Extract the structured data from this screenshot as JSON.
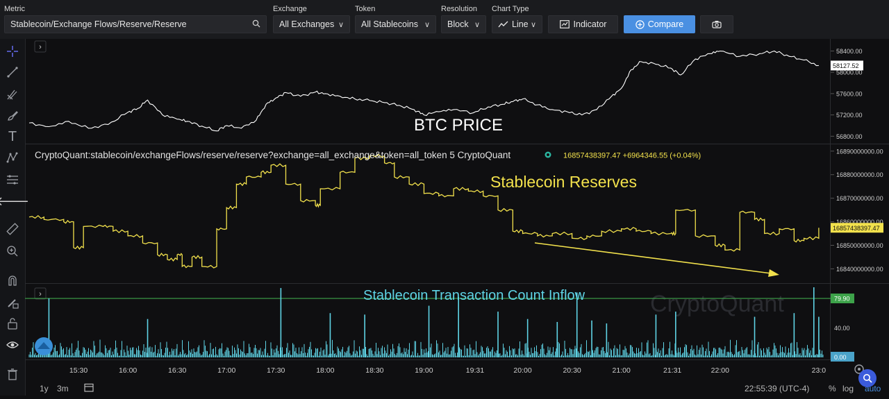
{
  "toolbar": {
    "metric_label": "Metric",
    "metric_value": "Stablecoin/Exchange Flows/Reserve/Reserve",
    "exchange_label": "Exchange",
    "exchange_value": "All Exchanges",
    "token_label": "Token",
    "token_value": "All Stablecoins",
    "resolution_label": "Resolution",
    "resolution_value": "Block",
    "chart_type_label": "Chart Type",
    "chart_type_value": "Line",
    "indicator_label": "Indicator",
    "compare_label": "Compare"
  },
  "bottom_bar": {
    "range_1y": "1y",
    "range_3m": "3m",
    "clock": "22:55:39 (UTC-4)",
    "percent": "%",
    "log": "log",
    "auto": "auto"
  },
  "colors": {
    "btc": "#ffffff",
    "reserve": "#f2e14c",
    "inflow": "#5fd4e6",
    "threshold": "#3da34a",
    "accent": "#4a90e2"
  },
  "chart_data": [
    {
      "type": "line",
      "name": "btc_price",
      "title": "BTC PRICE",
      "x_range": [
        15.0,
        23.05
      ],
      "ylim": [
        56700,
        58550
      ],
      "ticks": [
        58400.0,
        58000.0,
        57600.0,
        57200.0,
        56800.0
      ],
      "tick_labels": [
        "58400.00",
        "58000.00",
        "57600.00",
        "57200.00",
        "56800.00"
      ],
      "last_value_label": "58127.52",
      "x": [
        15.0,
        15.2,
        15.4,
        15.6,
        15.8,
        16.0,
        16.1,
        16.2,
        16.35,
        16.5,
        16.6,
        16.75,
        16.9,
        17.0,
        17.15,
        17.3,
        17.4,
        17.5,
        17.6,
        17.75,
        17.9,
        18.0,
        18.15,
        18.3,
        18.45,
        18.6,
        18.75,
        18.9,
        19.0,
        19.15,
        19.3,
        19.5,
        19.65,
        19.8,
        19.9,
        20.0,
        20.15,
        20.3,
        20.45,
        20.6,
        20.75,
        20.9,
        21.0,
        21.1,
        21.2,
        21.35,
        21.5,
        21.6,
        21.75,
        21.9,
        22.0,
        22.2,
        22.4,
        22.55,
        22.7,
        22.85,
        23.0
      ],
      "y": [
        57050,
        56980,
        57080,
        56950,
        57020,
        57250,
        57320,
        57480,
        57200,
        57120,
        57080,
        56990,
        56900,
        57000,
        56950,
        57100,
        57400,
        57520,
        57620,
        57550,
        57630,
        57600,
        57550,
        57500,
        57470,
        57430,
        57380,
        57300,
        57200,
        57260,
        57300,
        57240,
        57350,
        57400,
        57450,
        57500,
        57390,
        57300,
        57260,
        57200,
        57300,
        57550,
        57700,
        58050,
        58200,
        58150,
        58080,
        57950,
        58250,
        58350,
        58400,
        58300,
        58350,
        58400,
        58300,
        58230,
        58127.52
      ]
    },
    {
      "type": "line",
      "name": "stablecoin_reserves",
      "title": "Stablecoin Reserves",
      "legend": "CryptoQuant:stablecoin/exchangeFlows/reserve/reserve?exchange=all_exchange&token=all_token  5  CryptoQuant",
      "legend_value": "16857438397.47  +6964346.55 (+0.04%)",
      "x_range": [
        15.0,
        23.05
      ],
      "ylim": [
        16836000000,
        16892000000
      ],
      "ticks": [
        16890000000,
        16880000000,
        16870000000,
        16860000000,
        16850000000,
        16840000000
      ],
      "tick_labels": [
        "16890000000.00",
        "16880000000.00",
        "16870000000.00",
        "16860000000.00",
        "16850000000.00",
        "16840000000.00"
      ],
      "last_value_label": "16857438397.47",
      "x": [
        15.0,
        15.15,
        15.35,
        15.45,
        15.55,
        15.75,
        15.85,
        16.0,
        16.15,
        16.3,
        16.4,
        16.5,
        16.55,
        16.65,
        16.75,
        16.9,
        17.0,
        17.1,
        17.2,
        17.35,
        17.45,
        17.6,
        17.75,
        17.9,
        17.95,
        18.15,
        18.3,
        18.45,
        18.6,
        18.7,
        18.85,
        19.0,
        19.15,
        19.3,
        19.45,
        19.6,
        19.75,
        19.9,
        20.0,
        20.15,
        20.3,
        20.5,
        20.65,
        20.8,
        21.0,
        21.15,
        21.3,
        21.5,
        21.55,
        21.75,
        21.95,
        22.05,
        22.2,
        22.35,
        22.45,
        22.6,
        22.75,
        22.85,
        23.0
      ],
      "y": [
        16862000000,
        16861000000,
        16860000000,
        16849000000,
        16858000000,
        16858000000,
        16856000000,
        16854000000,
        16851000000,
        16846000000,
        16844000000,
        16846000000,
        16841000000,
        16845000000,
        16841000000,
        16857000000,
        16866000000,
        16876000000,
        16879000000,
        16881000000,
        16884000000,
        16876000000,
        16869000000,
        16867000000,
        16874000000,
        16881000000,
        16887000000,
        16888000000,
        16885000000,
        16879000000,
        16876000000,
        16872000000,
        16871000000,
        16874000000,
        16873000000,
        16871000000,
        16865000000,
        16856000000,
        16855000000,
        16854000000,
        16855000000,
        16853000000,
        16854000000,
        16856000000,
        16857000000,
        16856000000,
        16855000000,
        16855000000,
        16865000000,
        16854000000,
        16850000000,
        16848000000,
        16864000000,
        16861000000,
        16855000000,
        16857000000,
        16852000000,
        16853000000,
        16857438397.47
      ]
    },
    {
      "type": "bar",
      "name": "stablecoin_transaction_count_inflow",
      "title": "Stablecoin Transaction Count Inflow",
      "watermark": "CryptoQuant",
      "x_range": [
        15.0,
        23.05
      ],
      "ylim": [
        0,
        95
      ],
      "ticks": [
        79.9,
        40.0,
        0.0
      ],
      "tick_labels": [
        "79.90",
        "40.00",
        "0.00"
      ],
      "threshold": 79.9,
      "spikes_x": [
        15.2,
        16.2,
        17.55,
        18.05,
        18.4,
        19.05,
        19.35,
        19.75,
        20.05,
        20.35,
        20.55,
        20.7,
        20.85,
        21.35,
        21.55,
        22.35,
        22.75,
        22.95,
        23.0
      ],
      "spikes_y": [
        80,
        52,
        94,
        60,
        58,
        70,
        82,
        62,
        52,
        48,
        88,
        50,
        46,
        58,
        62,
        55,
        60,
        95,
        55
      ]
    }
  ],
  "x_axis": {
    "ticks": [
      15.5,
      16.0,
      16.5,
      17.0,
      17.5,
      18.0,
      18.5,
      19.0,
      19.517,
      20.0,
      20.5,
      21.0,
      21.517,
      22.0,
      23.0
    ],
    "labels": [
      "15:30",
      "16:00",
      "16:30",
      "17:00",
      "17:30",
      "18:00",
      "18:30",
      "19:00",
      "19:31",
      "20:00",
      "20:30",
      "21:00",
      "21:31",
      "22:00",
      "23:0"
    ]
  }
}
